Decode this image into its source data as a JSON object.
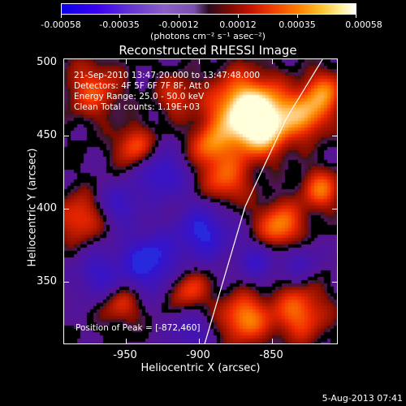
{
  "colorbar": {
    "labels": [
      "-0.00058",
      "-0.00035",
      "-0.00012",
      "0.00012",
      "0.00035",
      "0.00058"
    ],
    "units": "(photons cm⁻² s⁻¹ asec⁻²)"
  },
  "plot": {
    "title": "Reconstructed RHESSI Image",
    "info": {
      "time": "21-Sep-2010 13:47:20.000 to 13:47:48.000",
      "detectors": "Detectors: 4F 5F 6F 7F 8F, Att 0",
      "energy": "Energy Range: 25.0 - 50.0 keV",
      "clean": "Clean     Total counts: 1.19E+03"
    },
    "peak": "Position of Peak = [-872,460]"
  },
  "chart_data": {
    "type": "heatmap",
    "title": "Reconstructed RHESSI Image",
    "xlabel": "Heliocentric X (arcsec)",
    "ylabel": "Heliocentric Y (arcsec)",
    "xlim": [
      -994,
      -806
    ],
    "ylim": [
      305,
      501
    ],
    "xticks": [
      "-950",
      "-900",
      "-850"
    ],
    "xtick_values": [
      -950,
      -900,
      -850
    ],
    "yticks": [
      "350",
      "400",
      "450",
      "500"
    ],
    "ytick_values": [
      350,
      400,
      450,
      500
    ],
    "zlim": [
      -0.00058,
      0.00058
    ],
    "peak": {
      "x": -872,
      "y": 460
    },
    "limb_line": [
      [
        -898,
        305
      ],
      [
        -870,
        400
      ],
      [
        -842,
        460
      ],
      [
        -817,
        501
      ]
    ]
  },
  "footer": {
    "timestamp": "5-Aug-2013 07:41"
  }
}
